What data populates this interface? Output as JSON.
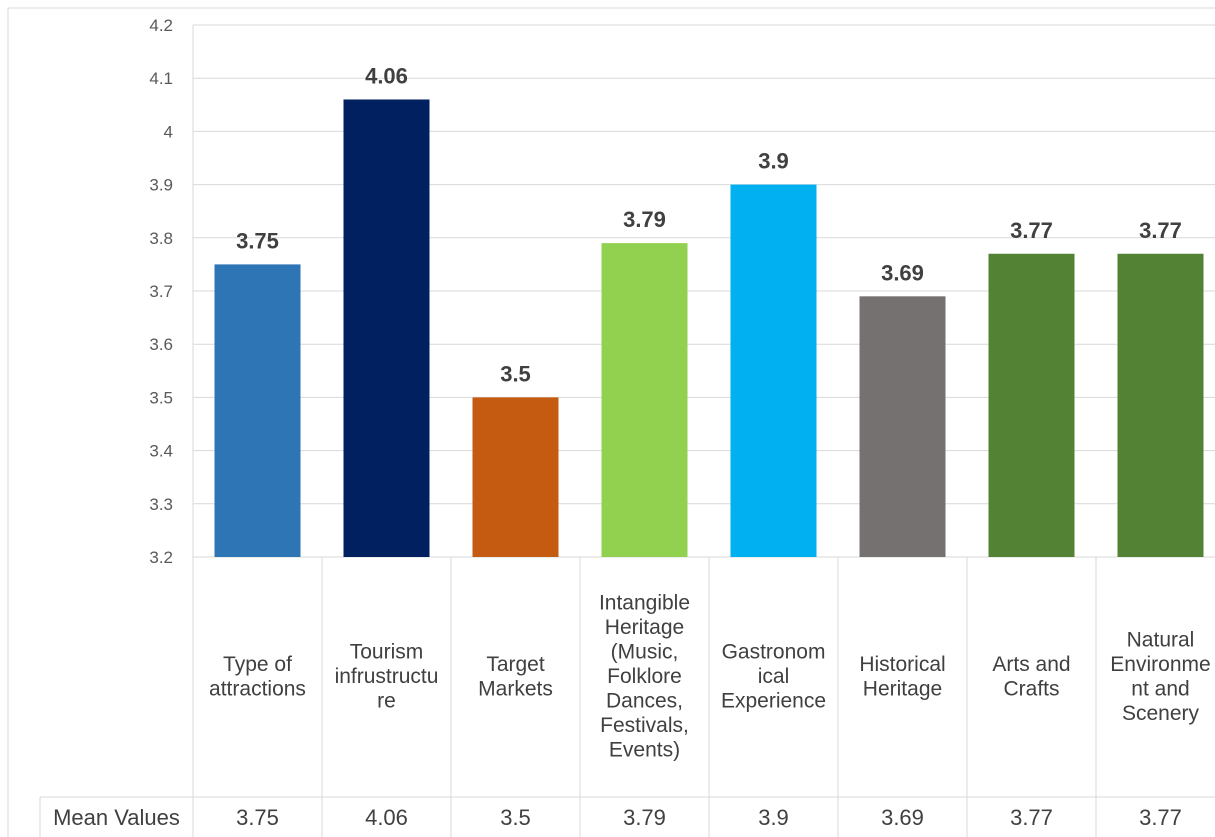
{
  "chart_data": {
    "type": "bar",
    "categories": [
      [
        "Type of",
        "attractions"
      ],
      [
        "Tourism",
        "infrustructu",
        "re"
      ],
      [
        "Target",
        "Markets"
      ],
      [
        "Intangible",
        "Heritage",
        "(Music,",
        "Folklore",
        "Dances,",
        "Festivals,",
        "Events)"
      ],
      [
        "Gastronom",
        "ical",
        "Experience"
      ],
      [
        "Historical",
        "Heritage"
      ],
      [
        "Arts and",
        "Crafts"
      ],
      [
        "Natural",
        "Environme",
        "nt and",
        "Scenery"
      ]
    ],
    "values": [
      3.75,
      4.06,
      3.5,
      3.79,
      3.9,
      3.69,
      3.77,
      3.77
    ],
    "value_labels": [
      "3.75",
      "4.06",
      "3.5",
      "3.79",
      "3.9",
      "3.69",
      "3.77",
      "3.77"
    ],
    "colors": [
      "#2E75B6",
      "#002060",
      "#C55A11",
      "#92D050",
      "#00B0F0",
      "#767171",
      "#548235",
      "#548235"
    ],
    "ylim": [
      3.2,
      4.2
    ],
    "yticks": [
      "3.2",
      "3.3",
      "3.4",
      "3.5",
      "3.6",
      "3.7",
      "3.8",
      "3.9",
      "4",
      "4.1",
      "4.2"
    ],
    "grid": true,
    "data_table": {
      "row_label": "Mean Values",
      "values": [
        "3.75",
        "4.06",
        "3.5",
        "3.79",
        "3.9",
        "3.69",
        "3.77",
        "3.77"
      ]
    }
  }
}
